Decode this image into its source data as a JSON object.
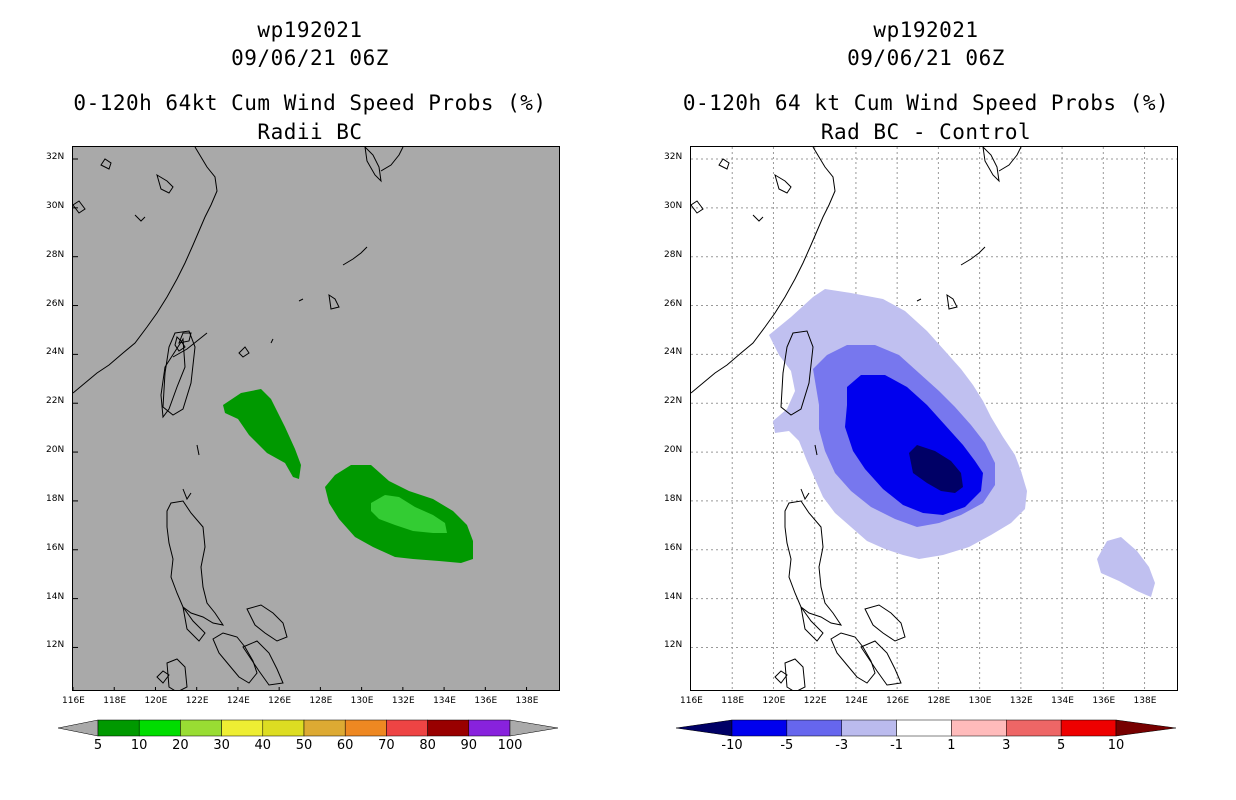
{
  "left_panel": {
    "storm_id": "wp192021",
    "datetime": "09/06/21 06Z",
    "title": "0-120h 64kt Cum Wind Speed Probs (%)",
    "subtitle": "Radii BC",
    "background_color": "#a9a9a9",
    "colorbar": {
      "labels": [
        "5",
        "10",
        "20",
        "30",
        "40",
        "50",
        "60",
        "70",
        "80",
        "90",
        "100"
      ],
      "colors": [
        "#009900",
        "#00dd00",
        "#99dd33",
        "#eeee33",
        "#dddd22",
        "#ddaa33",
        "#ee8822",
        "#ee4444",
        "#990000",
        "#8822dd"
      ]
    }
  },
  "right_panel": {
    "storm_id": "wp192021",
    "datetime": "09/06/21 06Z",
    "title": "0-120h 64 kt Cum Wind Speed Probs (%)",
    "subtitle": "Rad BC - Control",
    "background_color": "#ffffff",
    "colorbar": {
      "labels": [
        "-10",
        "-5",
        "-3",
        "-1",
        "1",
        "3",
        "5",
        "10"
      ],
      "colors": [
        "#000066",
        "#0000ee",
        "#6666ee",
        "#bbbbee",
        "#ffffff",
        "#ffbbbb",
        "#ee6666",
        "#ee0000",
        "#770000"
      ]
    }
  },
  "axes": {
    "lon_labels": [
      "116E",
      "118E",
      "120E",
      "122E",
      "124E",
      "126E",
      "128E",
      "130E",
      "132E",
      "134E",
      "136E",
      "138E"
    ],
    "lat_labels": [
      "32N",
      "30N",
      "28N",
      "26N",
      "24N",
      "22N",
      "20N",
      "18N",
      "16N",
      "14N",
      "12N"
    ]
  }
}
